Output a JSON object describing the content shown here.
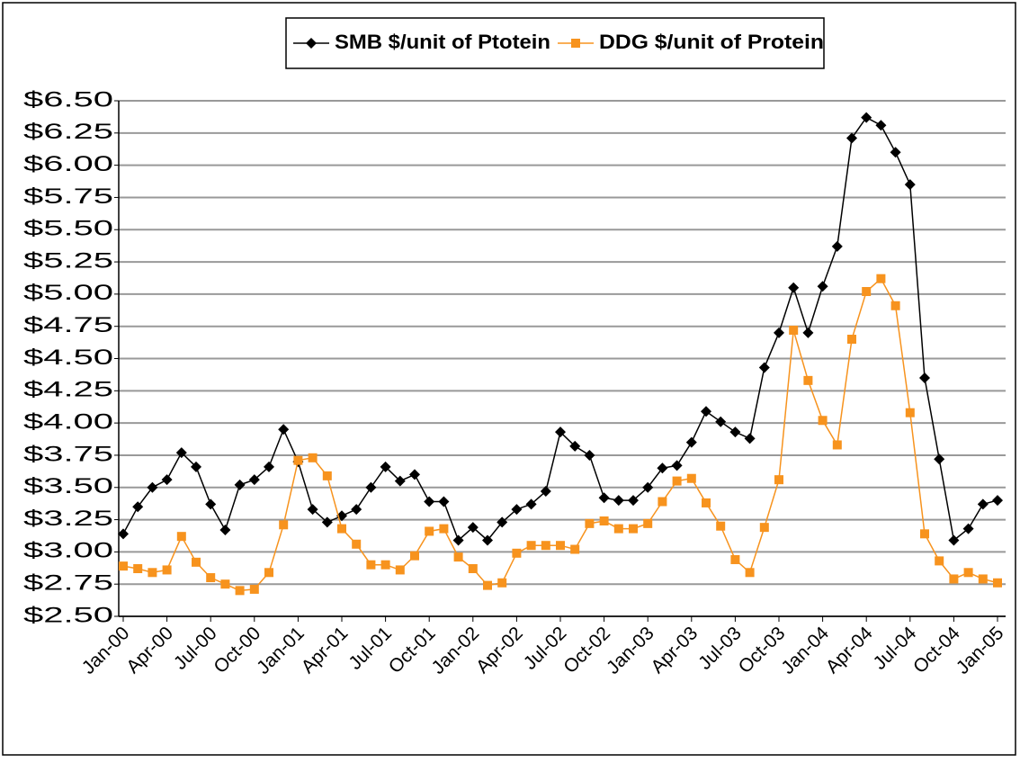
{
  "chart_data": {
    "type": "line",
    "categories": [
      "Jan-00",
      null,
      null,
      "Apr-00",
      null,
      null,
      "Jul-00",
      null,
      null,
      "Oct-00",
      null,
      null,
      "Jan-01",
      null,
      null,
      "Apr-01",
      null,
      null,
      "Jul-01",
      null,
      null,
      "Oct-01",
      null,
      null,
      "Jan-02",
      null,
      null,
      "Apr-02",
      null,
      null,
      "Jul-02",
      null,
      null,
      "Oct-02",
      null,
      null,
      "Jan-03",
      null,
      null,
      "Apr-03",
      null,
      null,
      "Jul-03",
      null,
      null,
      "Oct-03",
      null,
      null,
      "Jan-04",
      null,
      null,
      "Apr-04",
      null,
      null,
      "Jul-04",
      null,
      null,
      "Oct-04",
      null,
      null,
      "Jan-05"
    ],
    "series": [
      {
        "name": "SMB $/unit of Ptotein",
        "color": "#000000",
        "marker": "diamond",
        "values": [
          3.14,
          3.35,
          3.5,
          3.56,
          3.77,
          3.66,
          3.37,
          3.17,
          3.52,
          3.56,
          3.66,
          3.95,
          3.7,
          3.33,
          3.23,
          3.28,
          3.33,
          3.5,
          3.66,
          3.55,
          3.6,
          3.39,
          3.39,
          3.09,
          3.19,
          3.09,
          3.23,
          3.33,
          3.37,
          3.47,
          3.93,
          3.82,
          3.75,
          3.42,
          3.4,
          3.4,
          3.5,
          3.65,
          3.67,
          3.85,
          4.09,
          4.01,
          3.93,
          3.88,
          4.43,
          4.7,
          5.05,
          4.7,
          5.06,
          5.37,
          6.21,
          6.37,
          6.31,
          6.1,
          5.85,
          4.35,
          3.72,
          3.09,
          3.18,
          3.37,
          3.4
        ]
      },
      {
        "name": "DDG $/unit of Protein",
        "color": "#f7931e",
        "marker": "square",
        "values": [
          2.89,
          2.87,
          2.84,
          2.86,
          3.12,
          2.92,
          2.8,
          2.75,
          2.7,
          2.71,
          2.84,
          3.21,
          3.71,
          3.73,
          3.59,
          3.18,
          3.06,
          2.9,
          2.9,
          2.86,
          2.97,
          3.16,
          3.18,
          2.96,
          2.87,
          2.74,
          2.76,
          2.99,
          3.05,
          3.05,
          3.05,
          3.02,
          3.22,
          3.24,
          3.18,
          3.18,
          3.22,
          3.39,
          3.55,
          3.57,
          3.38,
          3.2,
          2.94,
          2.84,
          3.19,
          3.56,
          4.72,
          4.33,
          4.02,
          3.83,
          4.65,
          5.02,
          5.12,
          4.91,
          4.08,
          3.14,
          2.93,
          2.79,
          2.84,
          2.79,
          2.76
        ]
      }
    ],
    "ylim": [
      2.5,
      6.5
    ],
    "yticks": [
      {
        "value": 2.5,
        "label": "$2.50"
      },
      {
        "value": 2.75,
        "label": "$2.75"
      },
      {
        "value": 3,
        "label": "$3.00"
      },
      {
        "value": 3.25,
        "label": "$3.25"
      },
      {
        "value": 3.5,
        "label": "$3.50"
      },
      {
        "value": 3.75,
        "label": "$3.75"
      },
      {
        "value": 4,
        "label": "$4.00"
      },
      {
        "value": 4.25,
        "label": "$4.25"
      },
      {
        "value": 4.5,
        "label": "$4.50"
      },
      {
        "value": 4.75,
        "label": "$4.75"
      },
      {
        "value": 5,
        "label": "$5.00"
      },
      {
        "value": 5.25,
        "label": "$5.25"
      },
      {
        "value": 5.5,
        "label": "$5.50"
      },
      {
        "value": 5.75,
        "label": "$5.75"
      },
      {
        "value": 6,
        "label": "$6.00"
      },
      {
        "value": 6.25,
        "label": "$6.25"
      },
      {
        "value": 6.5,
        "label": "$6.50"
      }
    ],
    "grid": true,
    "legend": "top"
  }
}
